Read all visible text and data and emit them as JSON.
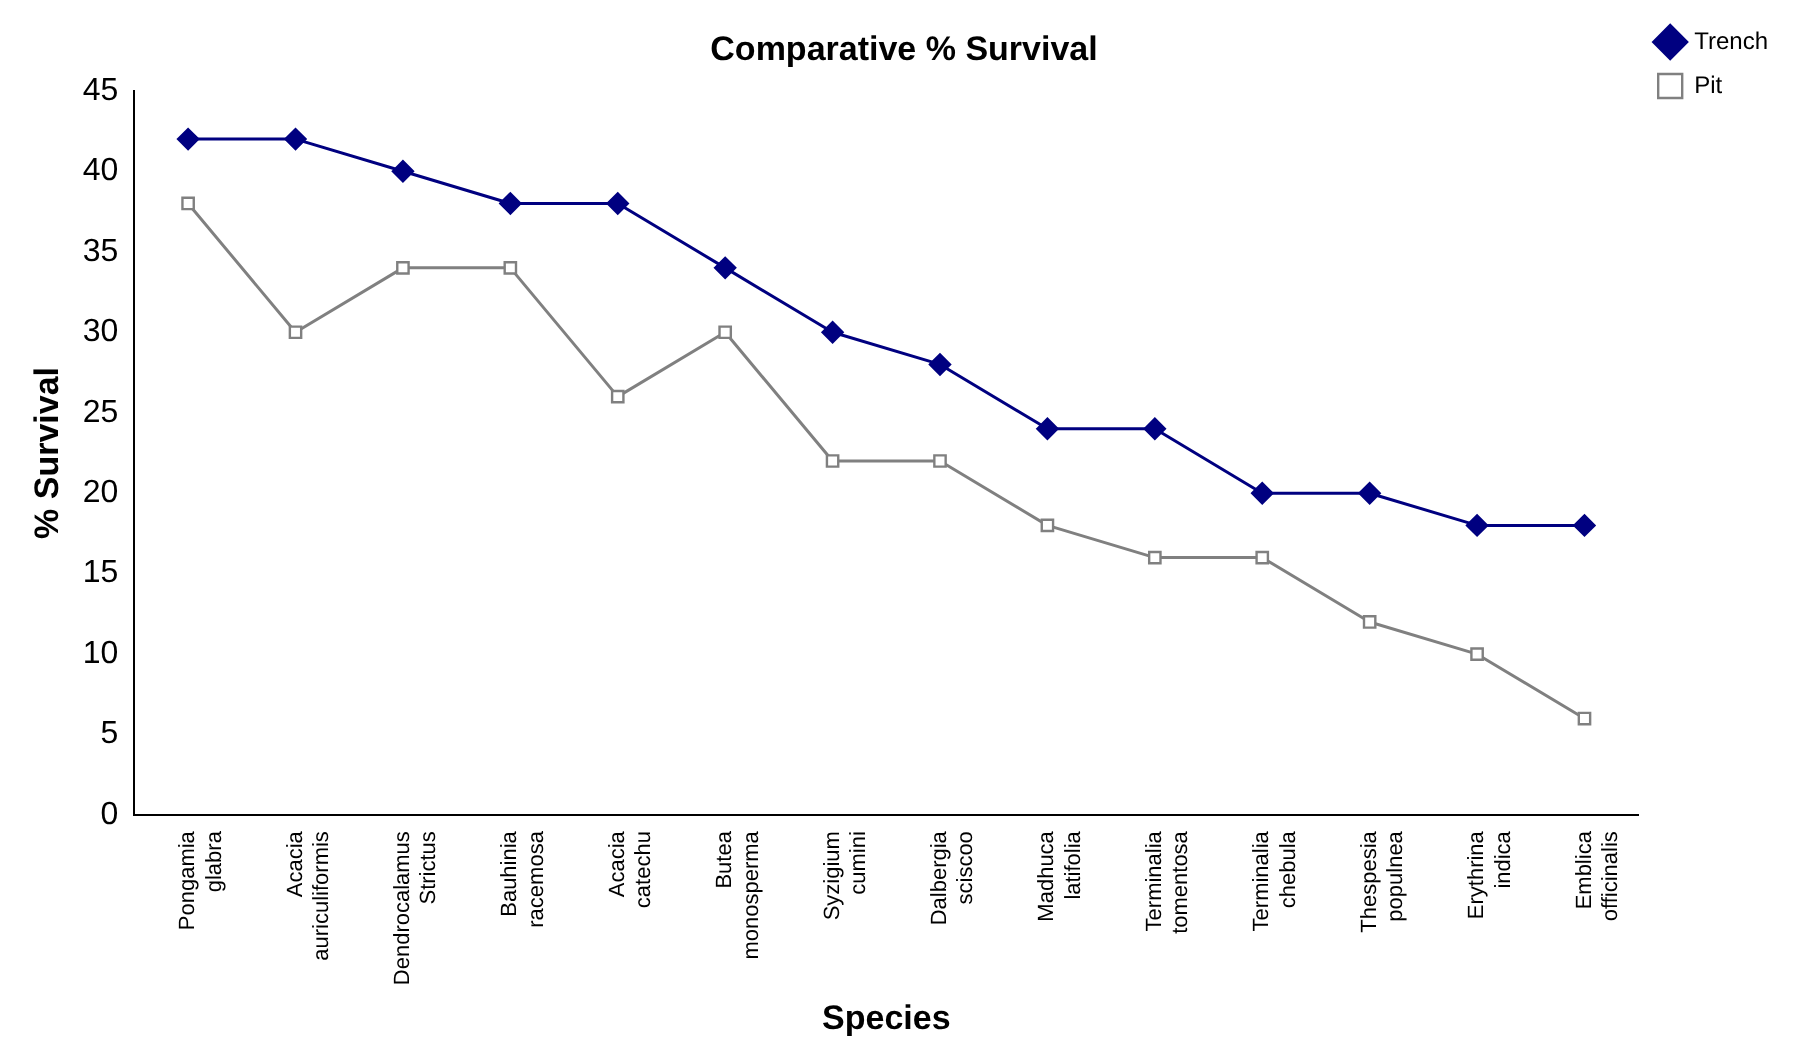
{
  "chart_data": {
    "type": "line",
    "title": "Comparative % Survival",
    "xlabel": "Species",
    "ylabel": "% Survival",
    "categories": [
      "Pongamia glabra",
      "Acacia auriculiformis",
      "Dendrocalamus Strictus",
      "Bauhinia racemosa",
      "Acacia catechu",
      "Butea monosperma",
      "Syzigium cumini",
      "Dalbergia sciscoo",
      "Madhuca latifolia",
      "Terminalia tomentosa",
      "Terminalia chebula",
      "Thespesia populnea",
      "Erythrina indica",
      "Emblica officinalis"
    ],
    "series": [
      {
        "name": "Trench",
        "color": "#000080",
        "marker": "diamond",
        "values": [
          42,
          42,
          40,
          38,
          38,
          34,
          30,
          28,
          24,
          24,
          20,
          20,
          18,
          18
        ]
      },
      {
        "name": "Pit",
        "color": "#808080",
        "marker": "square",
        "values": [
          38,
          30,
          34,
          34,
          26,
          30,
          22,
          22,
          18,
          16,
          16,
          12,
          10,
          6
        ]
      }
    ],
    "ylim": [
      0,
      45
    ],
    "yticks": [
      0,
      5,
      10,
      15,
      20,
      25,
      30,
      35,
      40,
      45
    ],
    "grid": false,
    "legend": "top right",
    "line_style": "solid"
  }
}
